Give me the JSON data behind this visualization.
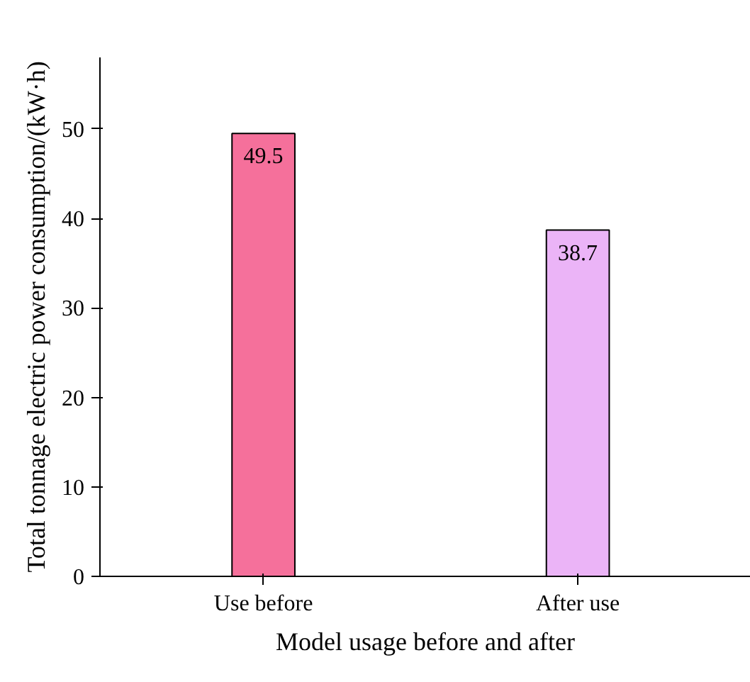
{
  "chart_data": {
    "type": "bar",
    "xlabel": "Model usage before and after",
    "ylabel": "Total tonnage electric power consumption/(kW·h)",
    "categories": [
      "Use before",
      "After use"
    ],
    "values": [
      49.5,
      38.7
    ],
    "colors": [
      "#f5709b",
      "#ebb4f7"
    ],
    "ylim": [
      0,
      58
    ],
    "yticks": [
      0,
      10,
      20,
      30,
      40,
      50
    ],
    "grid": false,
    "data_labels": true
  }
}
